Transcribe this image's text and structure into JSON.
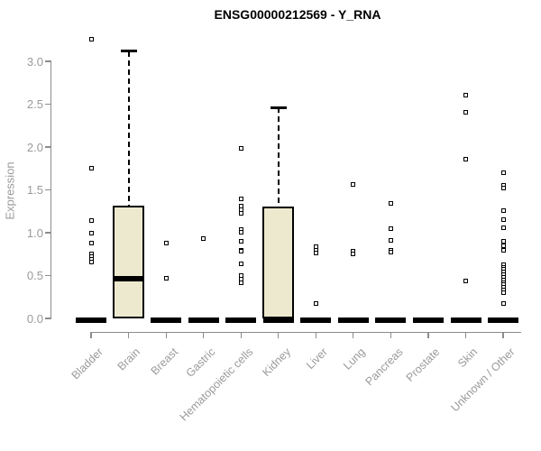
{
  "chart_data": {
    "type": "boxplot",
    "title": "ENSG00000212569 - Y_RNA",
    "ylabel": "Expression",
    "xlabel": "",
    "ylim": [
      0,
      3.0
    ],
    "ytick_labels": [
      "0.0",
      "0.5",
      "1.0",
      "1.5",
      "2.0",
      "2.5",
      "3.0"
    ],
    "grid": "off",
    "legend": "none",
    "categories": [
      "Bladder",
      "Brain",
      "Breast",
      "Gastric",
      "Hematopoietic cells",
      "Kidney",
      "Liver",
      "Lung",
      "Pancreas",
      "Prostate",
      "Skin",
      "Unknown / Other"
    ],
    "series": [
      {
        "category": "Bladder",
        "q1": 0,
        "median": 0,
        "q3": 0,
        "whisker_low": 0,
        "whisker_high": 0,
        "outliers": [
          3.26,
          1.75,
          1.14,
          0.99,
          0.88,
          0.75,
          0.72,
          0.69,
          0.66
        ]
      },
      {
        "category": "Brain",
        "q1": 0,
        "median": 0.46,
        "q3": 1.32,
        "whisker_low": 0,
        "whisker_high": 3.12,
        "outliers": []
      },
      {
        "category": "Breast",
        "q1": 0,
        "median": 0,
        "q3": 0,
        "whisker_low": 0,
        "whisker_high": 0,
        "outliers": [
          0.88,
          0.47
        ]
      },
      {
        "category": "Gastric",
        "q1": 0,
        "median": 0,
        "q3": 0,
        "whisker_low": 0,
        "whisker_high": 0,
        "outliers": [
          0.93
        ]
      },
      {
        "category": "Hematopoietic cells",
        "q1": 0,
        "median": 0,
        "q3": 0,
        "whisker_low": 0,
        "whisker_high": 0,
        "outliers": [
          1.98,
          1.39,
          1.31,
          1.27,
          1.23,
          1.04,
          1.01,
          0.9,
          0.8,
          0.78,
          0.64,
          0.5,
          0.46,
          0.42
        ]
      },
      {
        "category": "Kidney",
        "q1": 0,
        "median": 0,
        "q3": 1.31,
        "whisker_low": 0,
        "whisker_high": 2.46,
        "outliers": []
      },
      {
        "category": "Liver",
        "q1": 0,
        "median": 0,
        "q3": 0,
        "whisker_low": 0,
        "whisker_high": 0,
        "outliers": [
          0.84,
          0.8,
          0.76,
          0.17
        ]
      },
      {
        "category": "Lung",
        "q1": 0,
        "median": 0,
        "q3": 0,
        "whisker_low": 0,
        "whisker_high": 0,
        "outliers": [
          1.56,
          0.78,
          0.75
        ]
      },
      {
        "category": "Pancreas",
        "q1": 0,
        "median": 0,
        "q3": 0,
        "whisker_low": 0,
        "whisker_high": 0,
        "outliers": [
          1.34,
          1.05,
          0.91,
          0.79,
          0.77
        ]
      },
      {
        "category": "Prostate",
        "q1": 0,
        "median": 0,
        "q3": 0,
        "whisker_low": 0,
        "whisker_high": 0,
        "outliers": []
      },
      {
        "category": "Skin",
        "q1": 0,
        "median": 0,
        "q3": 0,
        "whisker_low": 0,
        "whisker_high": 0,
        "outliers": [
          2.61,
          2.41,
          1.86,
          0.44
        ]
      },
      {
        "category": "Unknown / Other",
        "q1": 0,
        "median": 0,
        "q3": 0,
        "whisker_low": 0,
        "whisker_high": 0,
        "outliers": [
          1.7,
          1.55,
          1.52,
          1.26,
          1.15,
          1.06,
          0.9,
          0.85,
          0.8,
          0.63,
          0.6,
          0.57,
          0.54,
          0.51,
          0.48,
          0.45,
          0.42,
          0.39,
          0.36,
          0.33,
          0.3,
          0.17
        ]
      }
    ],
    "colors": {
      "box_fill": "#ede9ce",
      "box_border": "#000000",
      "axis_line": "#8c8c8c",
      "axis_text": "#9a9a9a",
      "title_text": "#000000"
    }
  }
}
